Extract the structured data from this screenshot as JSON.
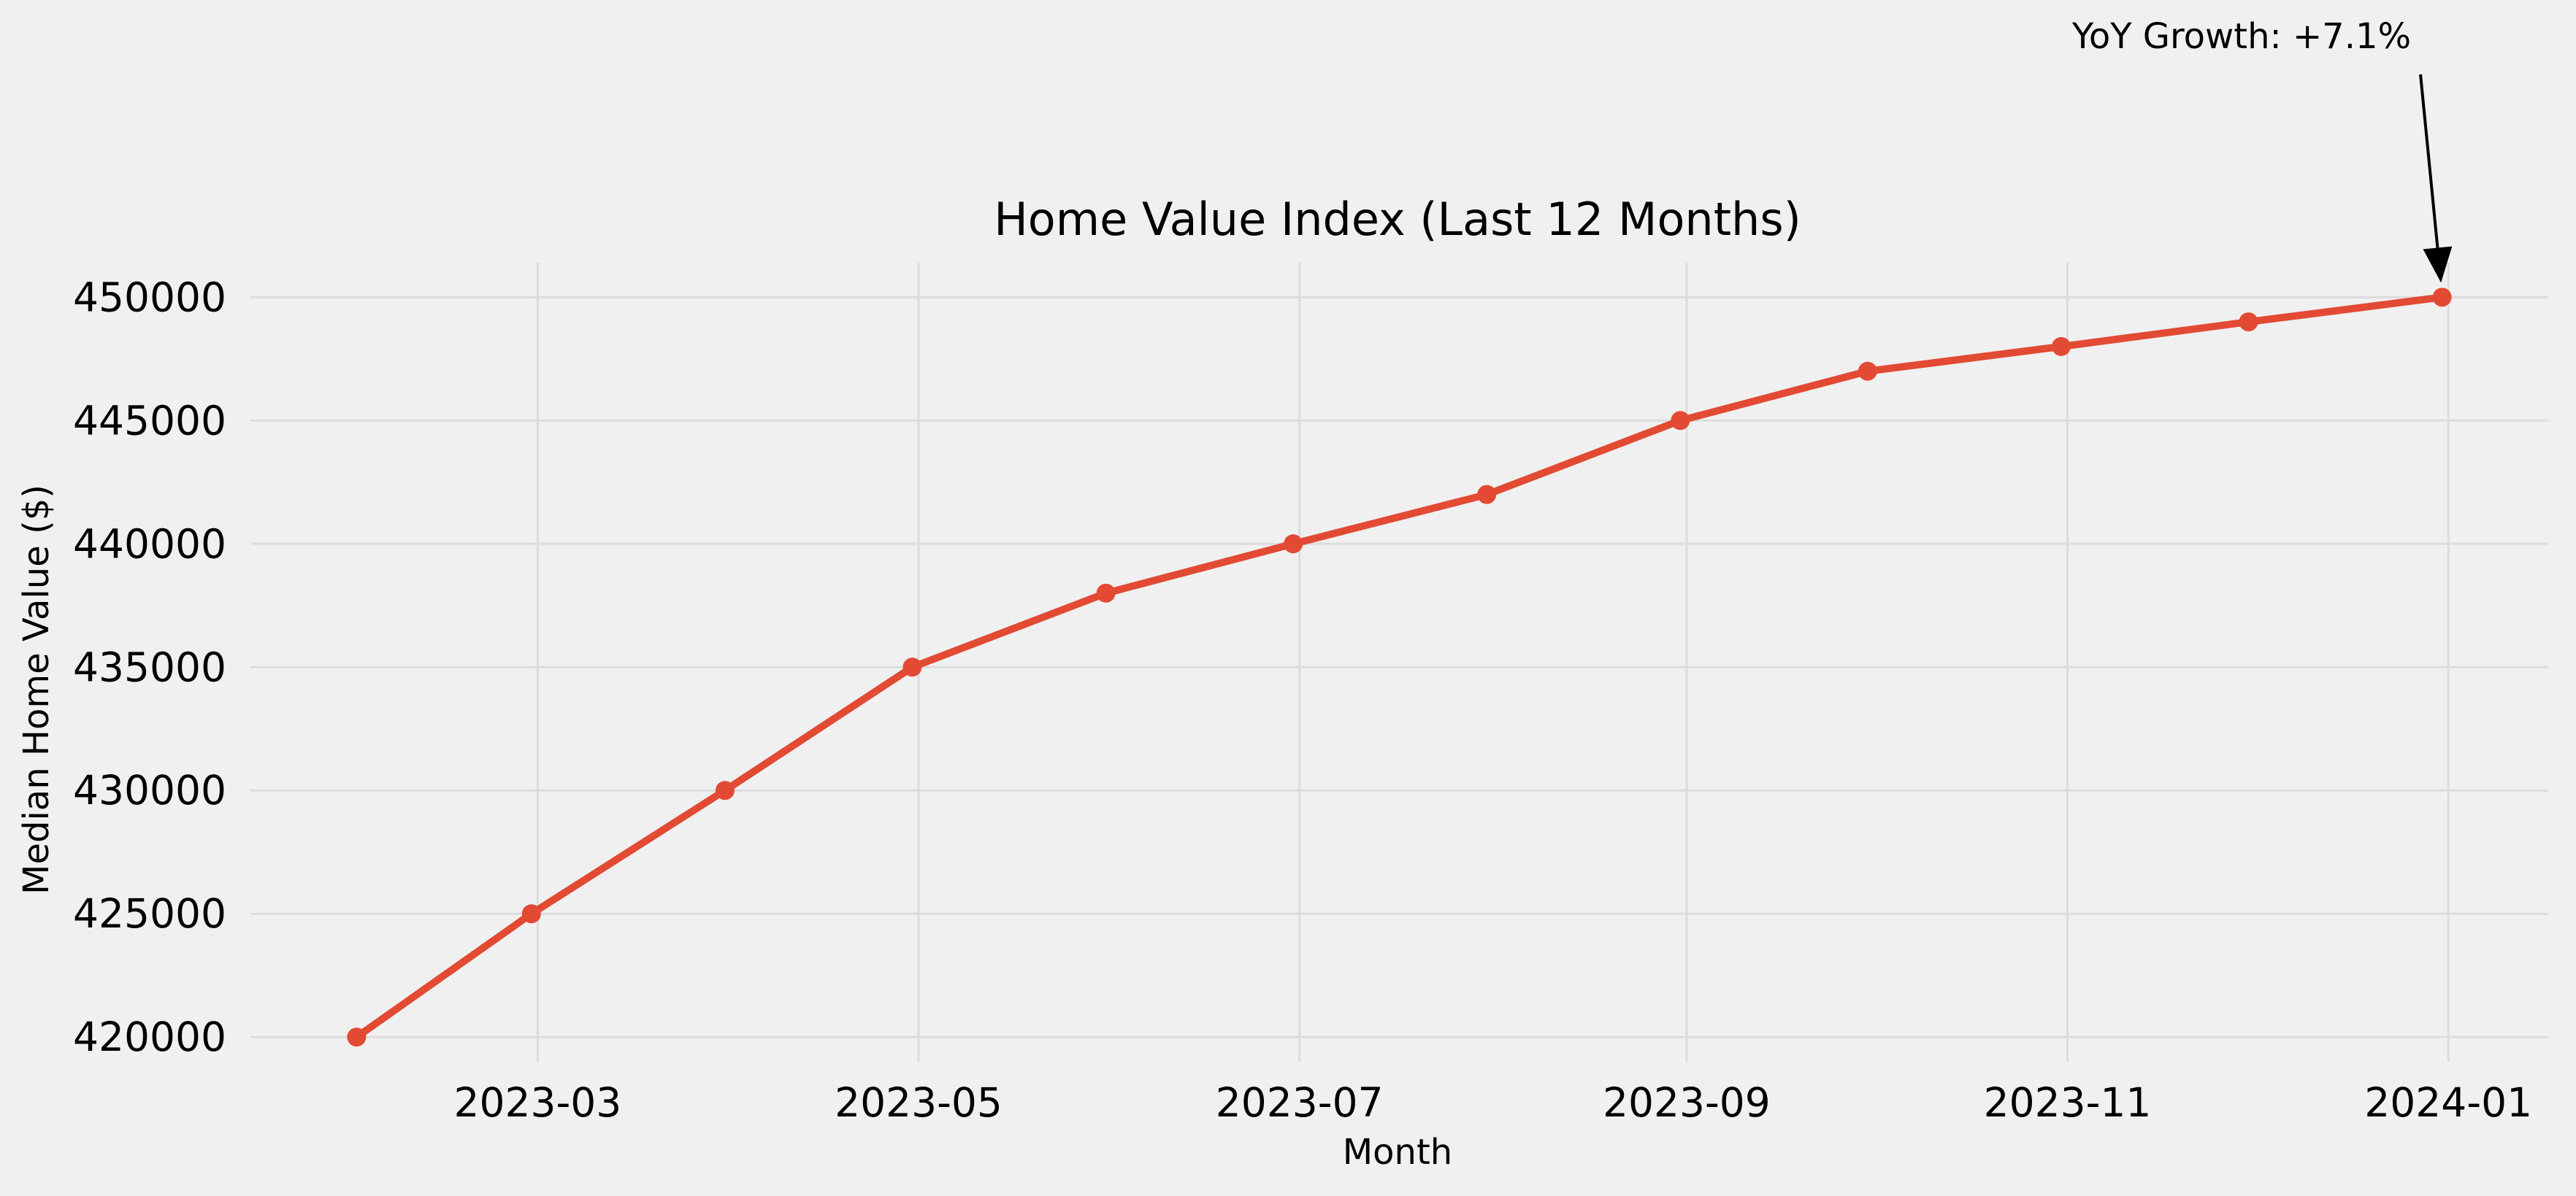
{
  "chart_data": {
    "type": "line",
    "title": "Home Value Index (Last 12 Months)",
    "xlabel": "Month",
    "ylabel": "Median Home Value ($)",
    "x": [
      "2023-01-31",
      "2023-02-28",
      "2023-03-31",
      "2023-04-30",
      "2023-05-31",
      "2023-06-30",
      "2023-07-31",
      "2023-08-31",
      "2023-09-30",
      "2023-10-31",
      "2023-11-30",
      "2023-12-31"
    ],
    "series": [
      {
        "values": [
          420000,
          425000,
          430000,
          435000,
          438000,
          440000,
          442000,
          445000,
          447000,
          448000,
          449000,
          450000
        ]
      }
    ],
    "x_ticks": [
      "2023-03",
      "2023-05",
      "2023-07",
      "2023-09",
      "2023-11",
      "2024-01"
    ],
    "x_tick_dates": [
      "2023-03-01",
      "2023-05-01",
      "2023-07-01",
      "2023-09-01",
      "2023-11-01",
      "2024-01-01"
    ],
    "y_ticks": [
      420000,
      425000,
      430000,
      435000,
      440000,
      445000,
      450000
    ],
    "xlim": [
      "2023-01-14",
      "2024-01-17"
    ],
    "ylim": [
      419000,
      451400
    ],
    "grid": true,
    "annotation": {
      "text": "YoY Growth: +7.1%",
      "target_x": "2023-12-31",
      "target_y": 450000
    },
    "colors": {
      "line": "#e24a33",
      "background": "#f0f0f0",
      "grid": "#dcdcdc",
      "text": "#000000"
    }
  }
}
